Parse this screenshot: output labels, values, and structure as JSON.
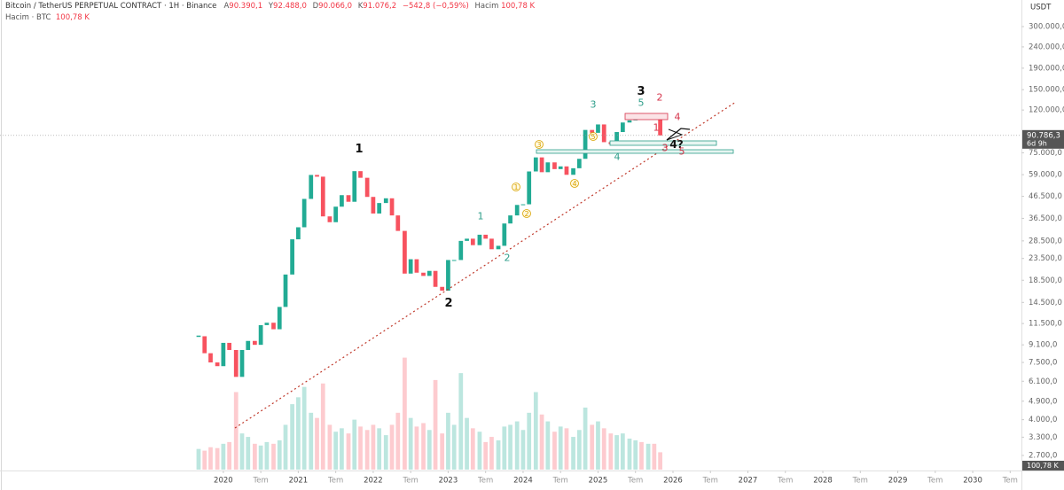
{
  "chart_data": {
    "type": "candlestick",
    "title": "Bitcoin / TetherUS PERPETUAL CONTRACT · 1H · Binance",
    "ohlc": [
      {
        "name": "A",
        "value": 90390.1,
        "label": "90.390,1"
      },
      {
        "name": "Y",
        "value": 92488.0,
        "label": "92.488,0"
      },
      {
        "name": "D",
        "value": 90066.0,
        "label": "90.066,0"
      },
      {
        "name": "K",
        "value": 91076.2,
        "label": "91.076,2"
      }
    ],
    "change": {
      "value": -542.8,
      "label": "−542,8 (−0,59%)"
    },
    "volume_name": "Hacim",
    "volume_subtitle": "Hacim · BTC",
    "volume_last": {
      "value": 100.78,
      "label": "100,78 K"
    },
    "currency": "USDT",
    "last_price": {
      "value": 90786.3,
      "label": "90.786,3"
    },
    "countdown": "6d 9h",
    "log_scale": true,
    "grid": false,
    "up_color": "#22ab94",
    "down_color": "#f7525f",
    "xlim": [
      2017.02,
      2030.65
    ],
    "xticks": [
      2020,
      {
        "value": 2020.5,
        "label": "Tem"
      },
      2021,
      {
        "value": 2021.5,
        "label": "Tem"
      },
      2022,
      {
        "value": 2022.5,
        "label": "Tem"
      },
      2023,
      {
        "value": 2023.5,
        "label": "Tem"
      },
      2024,
      {
        "value": 2024.5,
        "label": "Tem"
      },
      2025,
      {
        "value": 2025.5,
        "label": "Tem"
      },
      2026,
      {
        "value": 2026.5,
        "label": "Tem"
      },
      2027,
      {
        "value": 2027.5,
        "label": "Tem"
      },
      2028,
      {
        "value": 2028.5,
        "label": "Tem"
      },
      2029,
      {
        "value": 2029.5,
        "label": "Tem"
      },
      2030,
      {
        "value": 2030.5,
        "label": "Tem"
      }
    ],
    "ylim": [
      2311,
      401700
    ],
    "yticks": [
      {
        "value": 300000,
        "label": "300.000,0"
      },
      {
        "value": 240000,
        "label": "240.000,0"
      },
      {
        "value": 190000,
        "label": "190.000,0"
      },
      {
        "value": 150000,
        "label": "150.000,0"
      },
      {
        "value": 120000,
        "label": "120.000,0"
      },
      {
        "value": 75000,
        "label": "75.000,0"
      },
      {
        "value": 59000,
        "label": "59.000,0"
      },
      {
        "value": 46500,
        "label": "46.500,0"
      },
      {
        "value": 36500,
        "label": "36.500,0"
      },
      {
        "value": 28500,
        "label": "28.500,0"
      },
      {
        "value": 23500,
        "label": "23.500,0"
      },
      {
        "value": 18500,
        "label": "18.500,0"
      },
      {
        "value": 14500,
        "label": "14.500,0"
      },
      {
        "value": 11500,
        "label": "11.500,0"
      },
      {
        "value": 9100,
        "label": "9.100,0"
      },
      {
        "value": 7500,
        "label": "7.500,0"
      },
      {
        "value": 6100,
        "label": "6.100,0"
      },
      {
        "value": 4900,
        "label": "4.900,0"
      },
      {
        "value": 4000,
        "label": "4.000,0"
      },
      {
        "value": 3300,
        "label": "3.300,0"
      },
      {
        "value": 2700,
        "label": "2.700,0"
      }
    ],
    "x": [
      2019.67,
      2019.75,
      2019.83,
      2019.92,
      2020.0,
      2020.08,
      2020.17,
      2020.25,
      2020.33,
      2020.42,
      2020.5,
      2020.58,
      2020.67,
      2020.75,
      2020.83,
      2020.92,
      2021.0,
      2021.08,
      2021.17,
      2021.25,
      2021.33,
      2021.42,
      2021.5,
      2021.58,
      2021.67,
      2021.75,
      2021.83,
      2021.92,
      2022.0,
      2022.08,
      2022.17,
      2022.25,
      2022.33,
      2022.42,
      2022.5,
      2022.58,
      2022.67,
      2022.75,
      2022.83,
      2022.92,
      2023.0,
      2023.08,
      2023.17,
      2023.25,
      2023.33,
      2023.42,
      2023.5,
      2023.58,
      2023.67,
      2023.75,
      2023.83,
      2023.92,
      2024.0,
      2024.08,
      2024.17,
      2024.25,
      2024.33,
      2024.42,
      2024.5,
      2024.58,
      2024.67,
      2024.75,
      2024.83,
      2024.92,
      2025.0,
      2025.08,
      2025.17,
      2025.25,
      2025.33,
      2025.42,
      2025.5,
      2025.58,
      2025.67,
      2025.75,
      2025.83
    ],
    "values": [
      10000,
      8300,
      7500,
      7200,
      9300,
      8600,
      6400,
      8600,
      9500,
      9100,
      11300,
      11600,
      10800,
      13800,
      19700,
      29000,
      33100,
      45200,
      58800,
      57700,
      37300,
      35000,
      41500,
      47100,
      43800,
      61300,
      57000,
      46200,
      38500,
      43200,
      45500,
      37700,
      31800,
      19900,
      23300,
      20100,
      19400,
      20500,
      17200,
      16500,
      23100,
      23100,
      28500,
      29200,
      27200,
      30500,
      29200,
      26000,
      27000,
      34500,
      37700,
      42300,
      42600,
      61100,
      71300,
      60600,
      67500,
      62700,
      64600,
      58900,
      63300,
      70200,
      96400,
      93400,
      102400,
      84300,
      82500,
      94200,
      104600,
      107100,
      115700,
      108200,
      114000,
      109500,
      90786.3
    ],
    "volume": [
      120,
      110,
      130,
      125,
      150,
      160,
      450,
      210,
      190,
      150,
      140,
      160,
      150,
      170,
      260,
      380,
      420,
      480,
      330,
      300,
      500,
      260,
      220,
      240,
      210,
      290,
      250,
      230,
      260,
      240,
      200,
      260,
      330,
      650,
      300,
      250,
      270,
      230,
      520,
      210,
      330,
      260,
      560,
      300,
      240,
      220,
      160,
      190,
      170,
      250,
      260,
      280,
      230,
      330,
      450,
      320,
      280,
      220,
      250,
      240,
      190,
      230,
      360,
      260,
      280,
      240,
      210,
      200,
      210,
      180,
      170,
      160,
      150,
      150,
      100.78
    ],
    "volume_lim": [
      0,
      720
    ],
    "annotations": [
      {
        "text": "1",
        "color": "#111111",
        "circled": false
      },
      {
        "text": "2",
        "color": "#111111",
        "circled": false
      },
      {
        "text": "3",
        "color": "#111111",
        "circled": false
      },
      {
        "text": "4?",
        "color": "#111111",
        "circled": false
      },
      {
        "text": "1",
        "color": "#2e9e8a",
        "circled": false
      },
      {
        "text": "2",
        "color": "#2e9e8a",
        "circled": false
      },
      {
        "text": "3",
        "color": "#2e9e8a",
        "circled": false
      },
      {
        "text": "4",
        "color": "#2e9e8a",
        "circled": false
      },
      {
        "text": "5",
        "color": "#2e9e8a",
        "circled": false
      },
      {
        "text": "1",
        "color": "#d6334a",
        "circled": false
      },
      {
        "text": "2",
        "color": "#d6334a",
        "circled": false
      },
      {
        "text": "3",
        "color": "#d6334a",
        "circled": false
      },
      {
        "text": "4",
        "color": "#d6334a",
        "circled": false
      },
      {
        "text": "5",
        "color": "#d6334a",
        "circled": false
      },
      {
        "text": "1",
        "color": "#d9a300",
        "circled": true
      },
      {
        "text": "2",
        "color": "#d9a300",
        "circled": true
      },
      {
        "text": "3",
        "color": "#d9a300",
        "circled": true
      },
      {
        "text": "4",
        "color": "#d9a300",
        "circled": true
      },
      {
        "text": "5",
        "color": "#d9a300",
        "circled": true
      }
    ]
  }
}
